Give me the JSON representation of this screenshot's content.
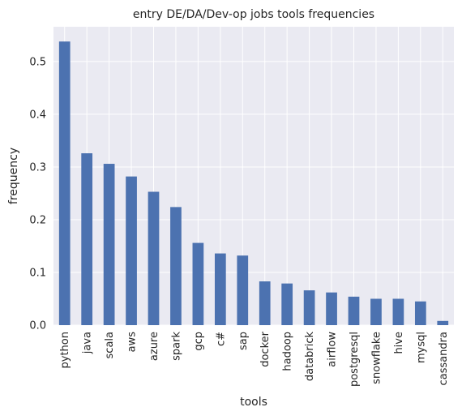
{
  "chart_data": {
    "type": "bar",
    "title": "entry DE/DA/Dev-op jobs tools frequencies",
    "xlabel": "tools",
    "ylabel": "frequency",
    "categories": [
      "python",
      "java",
      "scala",
      "aws",
      "azure",
      "spark",
      "gcp",
      "c#",
      "sap",
      "docker",
      "hadoop",
      "databrick",
      "airflow",
      "postgresql",
      "snowflake",
      "hive",
      "mysql",
      "cassandra"
    ],
    "values": [
      0.538,
      0.326,
      0.306,
      0.282,
      0.253,
      0.224,
      0.156,
      0.136,
      0.132,
      0.083,
      0.079,
      0.066,
      0.062,
      0.054,
      0.05,
      0.05,
      0.045,
      0.008
    ],
    "ylim": [
      0,
      0.566
    ],
    "yticks": [
      0.0,
      0.1,
      0.2,
      0.3,
      0.4,
      0.5
    ],
    "ytick_labels": [
      "0.0",
      "0.1",
      "0.2",
      "0.3",
      "0.4",
      "0.5"
    ],
    "grid": true,
    "colors": {
      "bar": "#4c72b0",
      "plot_background": "#eaeaf2",
      "grid": "#ffffff",
      "text": "#262626"
    }
  }
}
